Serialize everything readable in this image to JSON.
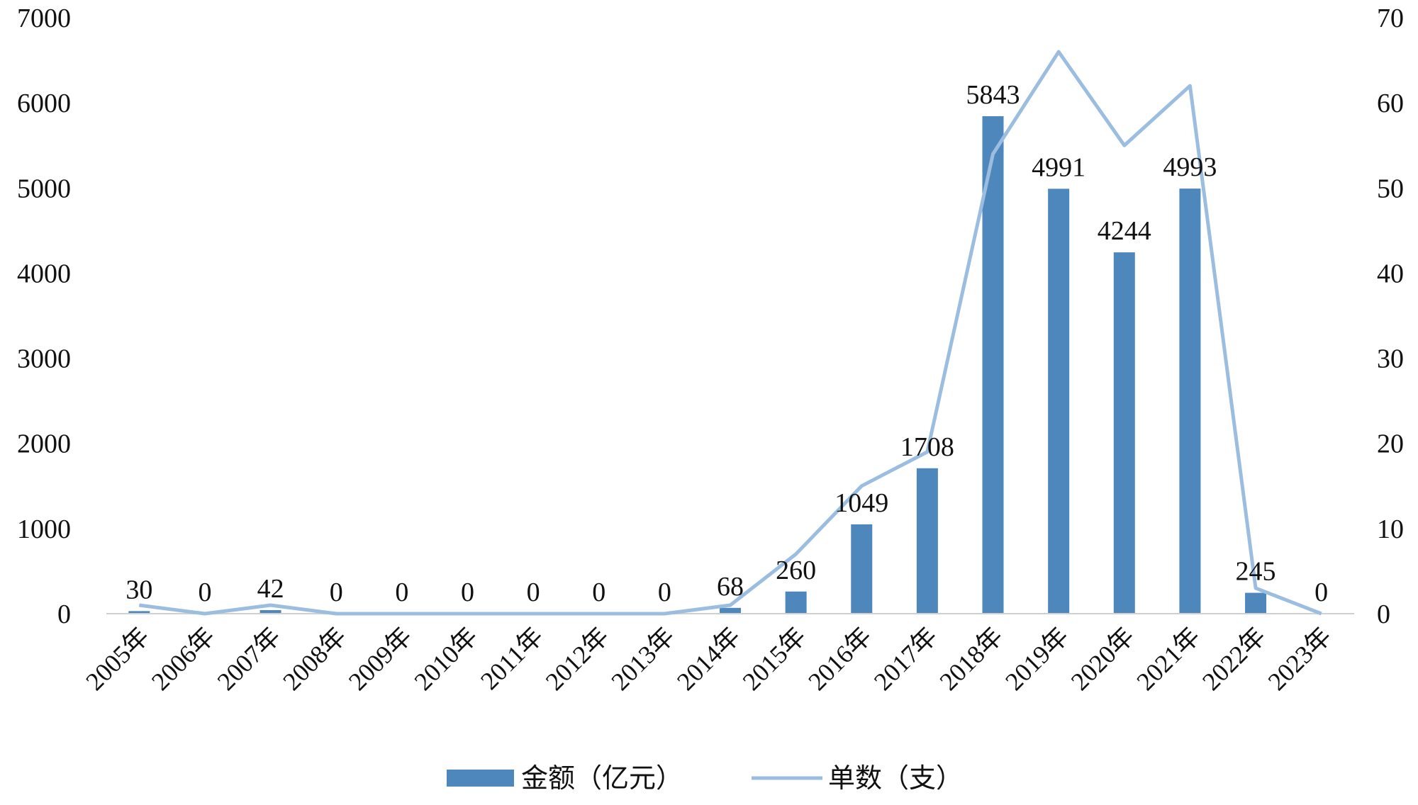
{
  "chart_data": {
    "type": "bar+line",
    "categories": [
      "2005年",
      "2006年",
      "2007年",
      "2008年",
      "2009年",
      "2010年",
      "2011年",
      "2012年",
      "2013年",
      "2014年",
      "2015年",
      "2016年",
      "2017年",
      "2018年",
      "2019年",
      "2020年",
      "2021年",
      "2022年",
      "2023年"
    ],
    "series": [
      {
        "name": "金额（亿元）",
        "type": "bar",
        "axis": "left",
        "color": "#4e87bb",
        "values": [
          30,
          0,
          42,
          0,
          0,
          0,
          0,
          0,
          0,
          68,
          260,
          1049,
          1708,
          5843,
          4991,
          4244,
          4993,
          245,
          0
        ]
      },
      {
        "name": "单数（支）",
        "type": "line",
        "axis": "right",
        "color": "#9bbde0",
        "values": [
          1,
          0,
          1,
          0,
          0,
          0,
          0,
          0,
          0,
          1,
          7,
          15,
          19,
          54,
          66,
          55,
          62,
          3,
          0
        ]
      }
    ],
    "left_axis": {
      "min": 0,
      "max": 7000,
      "ticks": [
        "0",
        "1000",
        "2000",
        "3000",
        "4000",
        "5000",
        "6000",
        "7000"
      ]
    },
    "right_axis": {
      "min": 0,
      "max": 70,
      "ticks": [
        "0",
        "10",
        "20",
        "30",
        "40",
        "50",
        "60",
        "70"
      ]
    },
    "grid": false,
    "legend_position": "bottom"
  }
}
